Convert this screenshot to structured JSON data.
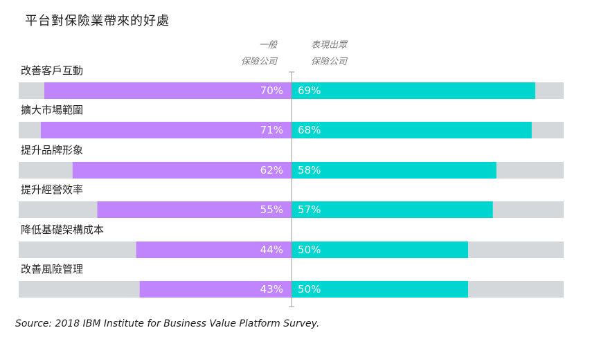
{
  "chart_data": {
    "type": "bar",
    "title": "平台對保險業帶來的好處",
    "categories": [
      "改善客戶互動",
      "擴大市場範圍",
      "提升品牌形象",
      "提升經營效率",
      "降低基礎架構成本",
      "改善風險管理"
    ],
    "series": [
      {
        "name_lines": [
          "一般",
          "保險公司"
        ],
        "values": [
          70,
          71,
          62,
          55,
          44,
          43
        ],
        "labels": [
          "70%",
          "71%",
          "62%",
          "55%",
          "44%",
          "43%"
        ],
        "color": "#c084fc"
      },
      {
        "name_lines": [
          "表現出眾",
          "保險公司"
        ],
        "values": [
          69,
          68,
          58,
          57,
          50,
          50
        ],
        "labels": [
          "69%",
          "68%",
          "58%",
          "57%",
          "50%",
          "50%"
        ],
        "color": "#00d6d0"
      }
    ],
    "xlim": [
      0,
      100
    ],
    "track_color": "#d4d8da",
    "axis_color": "#9a9a9a",
    "source": "Source: 2018 IBM Institute for Business Value Platform Survey."
  }
}
